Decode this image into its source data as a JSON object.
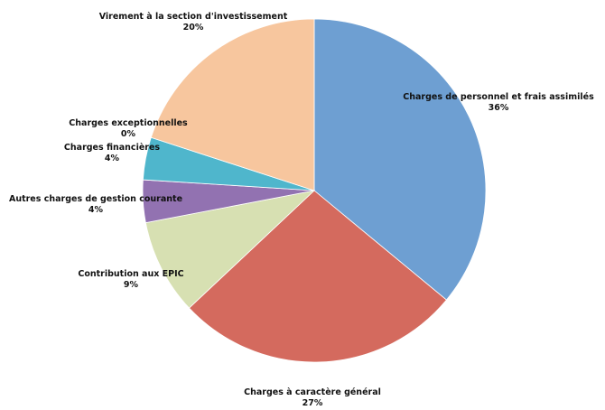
{
  "chart_data": {
    "type": "pie",
    "title": "",
    "start_angle_deg": 0,
    "direction": "clockwise",
    "slices": [
      {
        "label": "Charges de personnel et frais assimilés",
        "percent_label": "36%",
        "value": 36,
        "color": "#6e9fd2"
      },
      {
        "label": "Charges à caractère général",
        "percent_label": "27%",
        "value": 27,
        "color": "#d46a5e"
      },
      {
        "label": "Contribution aux EPIC",
        "percent_label": "9%",
        "value": 9,
        "color": "#d7e0b2"
      },
      {
        "label": "Autres charges de gestion courante",
        "percent_label": "4%",
        "value": 4,
        "color": "#9272b1"
      },
      {
        "label": "Charges financières",
        "percent_label": "4%",
        "value": 4,
        "color": "#4fb6cc"
      },
      {
        "label": "Charges exceptionnelles",
        "percent_label": "0%",
        "value": 0,
        "color": "#cfcfcf"
      },
      {
        "label": "Virement à la section d'investissement",
        "percent_label": "20%",
        "value": 20,
        "color": "#f7c69e"
      }
    ]
  }
}
